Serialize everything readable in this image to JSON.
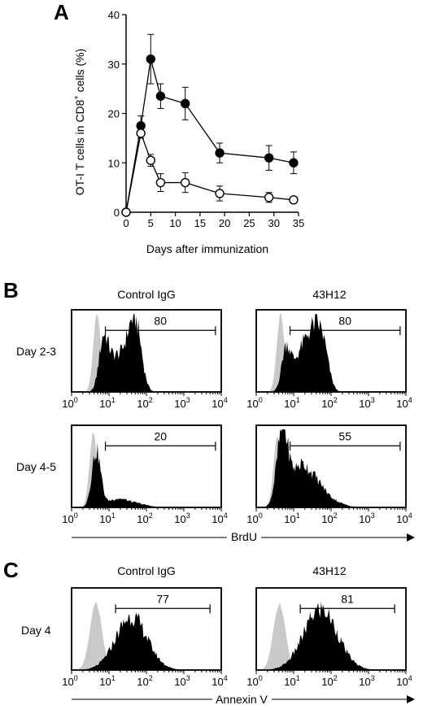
{
  "panels": {
    "A": "A",
    "B": "B",
    "C": "C"
  },
  "chart_data": [
    {
      "type": "line",
      "panel": "A",
      "ylabel_main": "OT-I T cells in CD8",
      "ylabel_sup": "+",
      "ylabel_tail": " cells (%)",
      "xlabel": "Days after immunization",
      "xlim": [
        0,
        35
      ],
      "ylim": [
        0,
        40
      ],
      "xticks": [
        0,
        5,
        10,
        15,
        20,
        25,
        30,
        35
      ],
      "yticks": [
        0,
        10,
        20,
        30,
        40
      ],
      "series": [
        {
          "marker": "filled",
          "points": [
            {
              "x": 0,
              "y": 0,
              "err": 0
            },
            {
              "x": 3,
              "y": 17.5,
              "err": 2
            },
            {
              "x": 5,
              "y": 31,
              "err": 5
            },
            {
              "x": 7,
              "y": 23.5,
              "err": 2.5
            },
            {
              "x": 12,
              "y": 22,
              "err": 3.3
            },
            {
              "x": 19,
              "y": 12,
              "err": 2
            },
            {
              "x": 29,
              "y": 11,
              "err": 2.5
            },
            {
              "x": 34,
              "y": 10,
              "err": 2.2
            }
          ]
        },
        {
          "marker": "open",
          "points": [
            {
              "x": 0,
              "y": 0,
              "err": 0
            },
            {
              "x": 3,
              "y": 16,
              "err": 1
            },
            {
              "x": 5,
              "y": 10.5,
              "err": 1.2
            },
            {
              "x": 7,
              "y": 6,
              "err": 1.8
            },
            {
              "x": 12,
              "y": 6,
              "err": 2
            },
            {
              "x": 19,
              "y": 3.8,
              "err": 1.5
            },
            {
              "x": 29,
              "y": 3,
              "err": 1
            },
            {
              "x": 34,
              "y": 2.5,
              "err": 0.5
            }
          ]
        }
      ]
    },
    {
      "type": "histogram",
      "panel": "B",
      "columns": [
        "Control IgG",
        "43H12"
      ],
      "rows": [
        "Day 2-3",
        "Day 4-5"
      ],
      "xaxis_label": "BrdU",
      "xscale": "log",
      "xlim": [
        1,
        10000
      ],
      "xticks": [
        {
          "base": "10",
          "exp": "0"
        },
        {
          "base": "10",
          "exp": "1"
        },
        {
          "base": "10",
          "exp": "2"
        },
        {
          "base": "10",
          "exp": "3"
        },
        {
          "base": "10",
          "exp": "4"
        }
      ],
      "gate_range": [
        8,
        7000
      ],
      "gate_values": [
        [
          "80",
          "80"
        ],
        [
          "20",
          "55"
        ]
      ]
    },
    {
      "type": "histogram",
      "panel": "C",
      "columns": [
        "Control IgG",
        "43H12"
      ],
      "rows": [
        "Day 4"
      ],
      "xaxis_label": "Annexin V",
      "xscale": "log",
      "xlim": [
        1,
        10000
      ],
      "xticks": [
        {
          "base": "10",
          "exp": "0"
        },
        {
          "base": "10",
          "exp": "1"
        },
        {
          "base": "10",
          "exp": "2"
        },
        {
          "base": "10",
          "exp": "3"
        },
        {
          "base": "10",
          "exp": "4"
        }
      ],
      "gate_range": [
        15,
        5000
      ],
      "gate_values": [
        [
          "77",
          "81"
        ]
      ]
    }
  ]
}
